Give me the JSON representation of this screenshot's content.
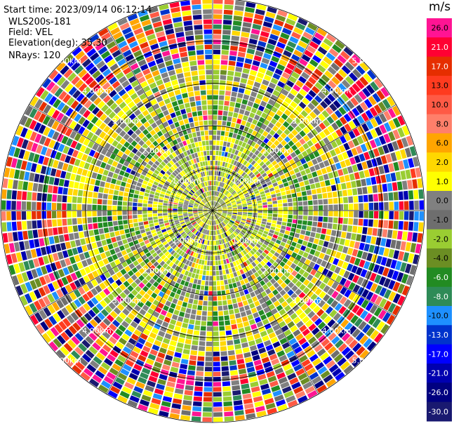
{
  "header": {
    "start_time": "Start time: 2023/09/14 06:12:14",
    "instrument": "WLS200s-181",
    "field": "Field: VEL",
    "elevation": "Elevation(deg): 35.30",
    "nrays": "NRays: 120"
  },
  "chart_data": {
    "type": "heatmap",
    "projection": "polar-ppi",
    "field": "VEL",
    "unit": "m/s",
    "elevation_deg": 35.3,
    "n_rays": 120,
    "range_rings_km": [
      1.0,
      2.0,
      3.0,
      4.0,
      5.0
    ],
    "ring_labels": [
      "1.00km",
      "2.00km",
      "3.00km",
      "4.00km",
      "5.00km"
    ],
    "max_range_km": 5.0,
    "colorbar": {
      "ticks": [
        "26.0",
        "21.0",
        "17.0",
        "13.0",
        "10.0",
        "8.0",
        "6.0",
        "2.0",
        "1.0",
        "0.0",
        "-1.0",
        "-2.0",
        "-4.0",
        "-6.0",
        "-8.0",
        "-10.0",
        "-13.0",
        "-17.0",
        "-21.0",
        "-26.0",
        "-30.0"
      ],
      "colors": [
        "#ff1493",
        "#ff0033",
        "#e62e00",
        "#ff3b1f",
        "#ff5a45",
        "#ff7f6a",
        "#ffa500",
        "#ffd700",
        "#ffff00",
        "#808080",
        "#6e6e6e",
        "#9acd32",
        "#6b8e23",
        "#228b22",
        "#2e8b57",
        "#1e90ff",
        "#0033cc",
        "#0000ff",
        "#0000b0",
        "#000080",
        "#191970"
      ]
    },
    "zones": [
      {
        "range_km": [
          0.0,
          0.35
        ],
        "description": "mixed near center",
        "palette": [
          "#808080",
          "#9acd32",
          "#ffff00"
        ]
      },
      {
        "range_km": [
          0.35,
          1.0
        ],
        "dominant": [
          "#9acd32",
          "#808080",
          "#ffff00"
        ]
      },
      {
        "range_km": [
          1.0,
          1.8
        ],
        "dominant": [
          "#ffff00",
          "#9acd32",
          "#808080"
        ]
      },
      {
        "range_km": [
          1.8,
          2.8
        ],
        "dominant": [
          "#808080",
          "#9acd32",
          "#ffd700",
          "#228b22"
        ]
      },
      {
        "range_km": [
          2.8,
          3.5
        ],
        "dominant": [
          "#ffff00",
          "#ffd700",
          "#9acd32",
          "#808080"
        ]
      },
      {
        "range_km": [
          3.5,
          5.0
        ],
        "description": "noise, all colors"
      }
    ]
  }
}
